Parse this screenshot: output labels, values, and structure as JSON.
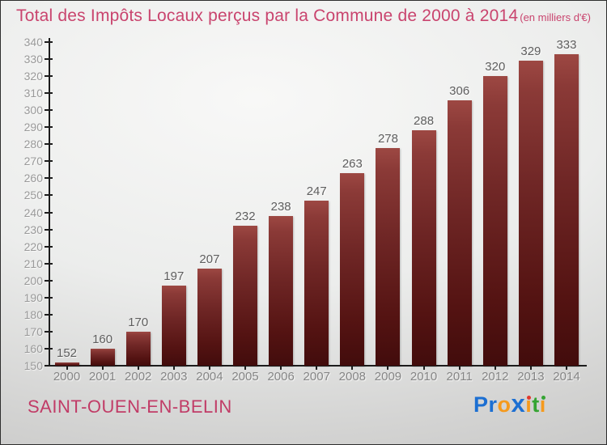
{
  "header": {
    "title": "Total des Impôts Locaux perçus par la Commune de 2000 à 2014",
    "unit": "(en milliers d'€)"
  },
  "chart_data": {
    "type": "bar",
    "title": "Total des Impôts Locaux perçus par la Commune de 2000 à 2014",
    "subtitle": "(en milliers d'€)",
    "categories": [
      "2000",
      "2001",
      "2002",
      "2003",
      "2004",
      "2005",
      "2006",
      "2007",
      "2008",
      "2009",
      "2010",
      "2011",
      "2012",
      "2013",
      "2014"
    ],
    "values": [
      152,
      160,
      170,
      197,
      207,
      232,
      238,
      247,
      263,
      278,
      288,
      306,
      320,
      329,
      333
    ],
    "xlabel": "",
    "ylabel": "",
    "ylim": [
      150,
      340
    ],
    "y_tick_step": 10,
    "y_ticks": [
      150,
      160,
      170,
      180,
      190,
      200,
      210,
      220,
      230,
      240,
      250,
      260,
      270,
      280,
      290,
      300,
      310,
      320,
      330,
      340
    ],
    "grid": false,
    "legend": false,
    "bar_color_top": "#9d4843",
    "bar_color_bottom": "#420c0c"
  },
  "footer": {
    "commune": "SAINT-OUEN-EN-BELIN",
    "logo": {
      "name": "Proxiti",
      "segments": [
        {
          "text": "Pr",
          "color": "#1c6fd2"
        },
        {
          "text": "o",
          "color": "#f59a1d"
        },
        {
          "text": "x",
          "color": "#1c6fd2",
          "big": true
        },
        {
          "text": "ı",
          "color": "#f59a1d",
          "dot": "#e2392d"
        },
        {
          "text": "t",
          "color": "#35a432"
        },
        {
          "text": "ı",
          "color": "#f59a1d",
          "dot": "#35a432"
        }
      ]
    }
  },
  "colors": {
    "title": "#c9446e",
    "commune": "#c13c67",
    "axis": "#1c1c1c",
    "y_tick_text": "#9a9a9a",
    "x_tick_text": "#858585",
    "value_text": "#5e5e5e",
    "background_light": "#f8f8f7",
    "background_dark": "#c6c6c5"
  }
}
